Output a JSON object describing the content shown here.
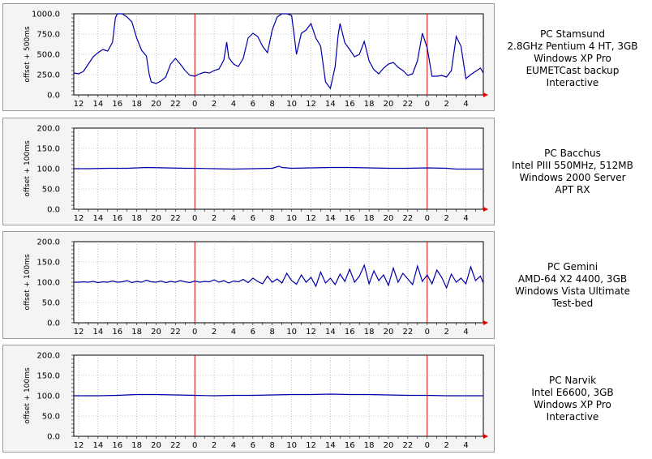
{
  "chart_data": [
    {
      "type": "line",
      "ylabel": "offset + 500ms",
      "ylim": [
        0,
        1000
      ],
      "yticks": [
        "0.0",
        "250.0",
        "500.0",
        "750.0",
        "1000.0"
      ],
      "xticks": [
        "12",
        "14",
        "16",
        "18",
        "20",
        "22",
        "0",
        "2",
        "4",
        "6",
        "8",
        "10",
        "12",
        "14",
        "16",
        "18",
        "20",
        "22",
        "0",
        "2",
        "4"
      ],
      "midnight_markers": [
        "0",
        "0"
      ],
      "grid": true,
      "series_color": "#0000aa",
      "series": [
        {
          "x": [
            11.5,
            12,
            12.5,
            13,
            13.5,
            14,
            14.5,
            15,
            15.5,
            15.8,
            16,
            16.5,
            17,
            17.5,
            18,
            18.5,
            19,
            19.3,
            19.5,
            20,
            20.5,
            21,
            21.5,
            22,
            22.5,
            23,
            23.5,
            24,
            24.5,
            25,
            25.5,
            26,
            26.5,
            27,
            27.3,
            27.5,
            28,
            28.5,
            29,
            29.5,
            30,
            30.5,
            31,
            31.5,
            32,
            32.5,
            33,
            33.5,
            34,
            34.3,
            34.5,
            35,
            35.5,
            36,
            36.5,
            37,
            37.5,
            38,
            38.5,
            38.8,
            39,
            39.5,
            40,
            40.5,
            41,
            41.5,
            42,
            42.5,
            43,
            43.5,
            44,
            44.5,
            45,
            45.5,
            46,
            46.5,
            47,
            47.5,
            48,
            48.5,
            49,
            49.5,
            50,
            50.5,
            51,
            51.5,
            52,
            52.5,
            53,
            53.5,
            53.8
          ],
          "y": [
            270,
            260,
            290,
            380,
            470,
            520,
            560,
            540,
            650,
            950,
            1000,
            1000,
            960,
            900,
            700,
            550,
            480,
            250,
            160,
            140,
            170,
            220,
            380,
            450,
            380,
            300,
            240,
            230,
            260,
            280,
            270,
            300,
            320,
            430,
            650,
            460,
            380,
            350,
            450,
            700,
            760,
            720,
            600,
            520,
            800,
            960,
            1000,
            1000,
            980,
            700,
            500,
            760,
            800,
            880,
            700,
            600,
            160,
            80,
            350,
            730,
            880,
            640,
            560,
            470,
            500,
            660,
            420,
            310,
            260,
            330,
            380,
            400,
            340,
            300,
            240,
            260,
            420,
            760,
            580,
            230,
            230,
            240,
            220,
            300,
            720,
            600,
            200,
            250,
            290,
            330,
            270
          ]
        }
      ]
    },
    {
      "type": "line",
      "ylabel": "offset + 100ms",
      "ylim": [
        0,
        200
      ],
      "yticks": [
        "0.0",
        "50.0",
        "100.0",
        "150.0",
        "200.0"
      ],
      "xticks": [
        "12",
        "14",
        "16",
        "18",
        "20",
        "22",
        "0",
        "2",
        "4",
        "6",
        "8",
        "10",
        "12",
        "14",
        "16",
        "18",
        "20",
        "22",
        "0",
        "2",
        "4"
      ],
      "midnight_markers": [
        "0",
        "0"
      ],
      "grid": true,
      "series_color": "#0000aa",
      "series": [
        {
          "x": [
            11.5,
            13,
            15,
            17,
            19,
            21,
            23,
            24,
            26,
            28,
            30,
            32,
            32.7,
            33,
            34,
            36,
            38,
            40,
            42,
            44,
            46,
            48,
            50,
            51,
            52,
            53.8
          ],
          "y": [
            100,
            100,
            101,
            101,
            103,
            102,
            101,
            101,
            100,
            99,
            100,
            101,
            106,
            103,
            101,
            102,
            103,
            103,
            102,
            101,
            101,
            102,
            101,
            99,
            99,
            99
          ]
        }
      ]
    },
    {
      "type": "line",
      "ylabel": "offset + 100ms",
      "ylim": [
        0,
        200
      ],
      "yticks": [
        "0.0",
        "50.0",
        "100.0",
        "150.0",
        "200.0"
      ],
      "xticks": [
        "12",
        "14",
        "16",
        "18",
        "20",
        "22",
        "0",
        "2",
        "4",
        "6",
        "8",
        "10",
        "12",
        "14",
        "16",
        "18",
        "20",
        "22",
        "0",
        "2",
        "4"
      ],
      "midnight_markers": [
        "0",
        "0"
      ],
      "grid": true,
      "series_color": "#0000aa",
      "series": [
        {
          "x": [
            11.5,
            12,
            12.5,
            13,
            13.5,
            14,
            14.5,
            15,
            15.5,
            16,
            16.5,
            17,
            17.5,
            18,
            18.5,
            19,
            19.5,
            20,
            20.5,
            21,
            21.5,
            22,
            22.5,
            23,
            23.5,
            24,
            24.5,
            25,
            25.5,
            26,
            26.5,
            27,
            27.5,
            28,
            28.5,
            29,
            29.5,
            30,
            30.5,
            31,
            31.5,
            32,
            32.5,
            33,
            33.5,
            34,
            34.5,
            35,
            35.5,
            36,
            36.5,
            37,
            37.5,
            38,
            38.5,
            39,
            39.5,
            40,
            40.5,
            41,
            41.5,
            42,
            42.5,
            43,
            43.5,
            44,
            44.5,
            45,
            45.5,
            46,
            46.5,
            47,
            47.5,
            48,
            48.5,
            49,
            49.5,
            50,
            50.5,
            51,
            51.5,
            52,
            52.5,
            53,
            53.5,
            53.8
          ],
          "y": [
            100,
            100,
            101,
            100,
            102,
            99,
            101,
            100,
            103,
            100,
            101,
            104,
            99,
            102,
            100,
            105,
            101,
            100,
            103,
            99,
            102,
            100,
            104,
            101,
            99,
            103,
            100,
            102,
            101,
            106,
            100,
            104,
            98,
            103,
            101,
            107,
            99,
            110,
            102,
            96,
            115,
            100,
            108,
            98,
            122,
            104,
            95,
            118,
            100,
            112,
            90,
            125,
            98,
            110,
            94,
            120,
            102,
            132,
            100,
            115,
            142,
            96,
            128,
            104,
            118,
            92,
            135,
            100,
            122,
            108,
            94,
            140,
            102,
            118,
            96,
            130,
            112,
            86,
            120,
            100,
            110,
            96,
            138,
            104,
            115,
            98
          ]
        }
      ]
    },
    {
      "type": "line",
      "ylabel": "offset + 100ms",
      "ylim": [
        0,
        200
      ],
      "yticks": [
        "0.0",
        "50.0",
        "100.0",
        "150.0",
        "200.0"
      ],
      "xticks": [
        "12",
        "14",
        "16",
        "18",
        "20",
        "22",
        "0",
        "2",
        "4",
        "6",
        "8",
        "10",
        "12",
        "14",
        "16",
        "18",
        "20",
        "22",
        "0",
        "2",
        "4"
      ],
      "midnight_markers": [
        "0",
        "0"
      ],
      "grid": true,
      "series_color": "#0000aa",
      "series": [
        {
          "x": [
            11.5,
            14,
            16,
            17,
            18,
            20,
            22,
            24,
            26,
            28,
            30,
            32,
            34,
            36,
            38,
            40,
            42,
            44,
            46,
            48,
            50,
            52,
            53.8
          ],
          "y": [
            100,
            100,
            101,
            102,
            103,
            103,
            102,
            101,
            100,
            101,
            101,
            102,
            103,
            103,
            104,
            103,
            103,
            102,
            101,
            101,
            100,
            100,
            100
          ]
        }
      ]
    }
  ],
  "captions": [
    {
      "lines": [
        "PC Stamsund",
        "2.8GHz Pentium 4 HT, 3GB",
        "Windows XP Pro",
        "EUMETCast backup",
        "Interactive"
      ]
    },
    {
      "lines": [
        "PC Bacchus",
        "Intel PIII 550MHz, 512MB",
        "Windows 2000 Server",
        "APT RX"
      ]
    },
    {
      "lines": [
        "PC Gemini",
        "AMD-64 X2 4400, 3GB",
        "Windows Vista Ultimate",
        "Test-bed"
      ]
    },
    {
      "lines": [
        "PC Narvik",
        "Intel E6600, 3GB",
        "Windows XP Pro",
        "Interactive"
      ]
    }
  ]
}
